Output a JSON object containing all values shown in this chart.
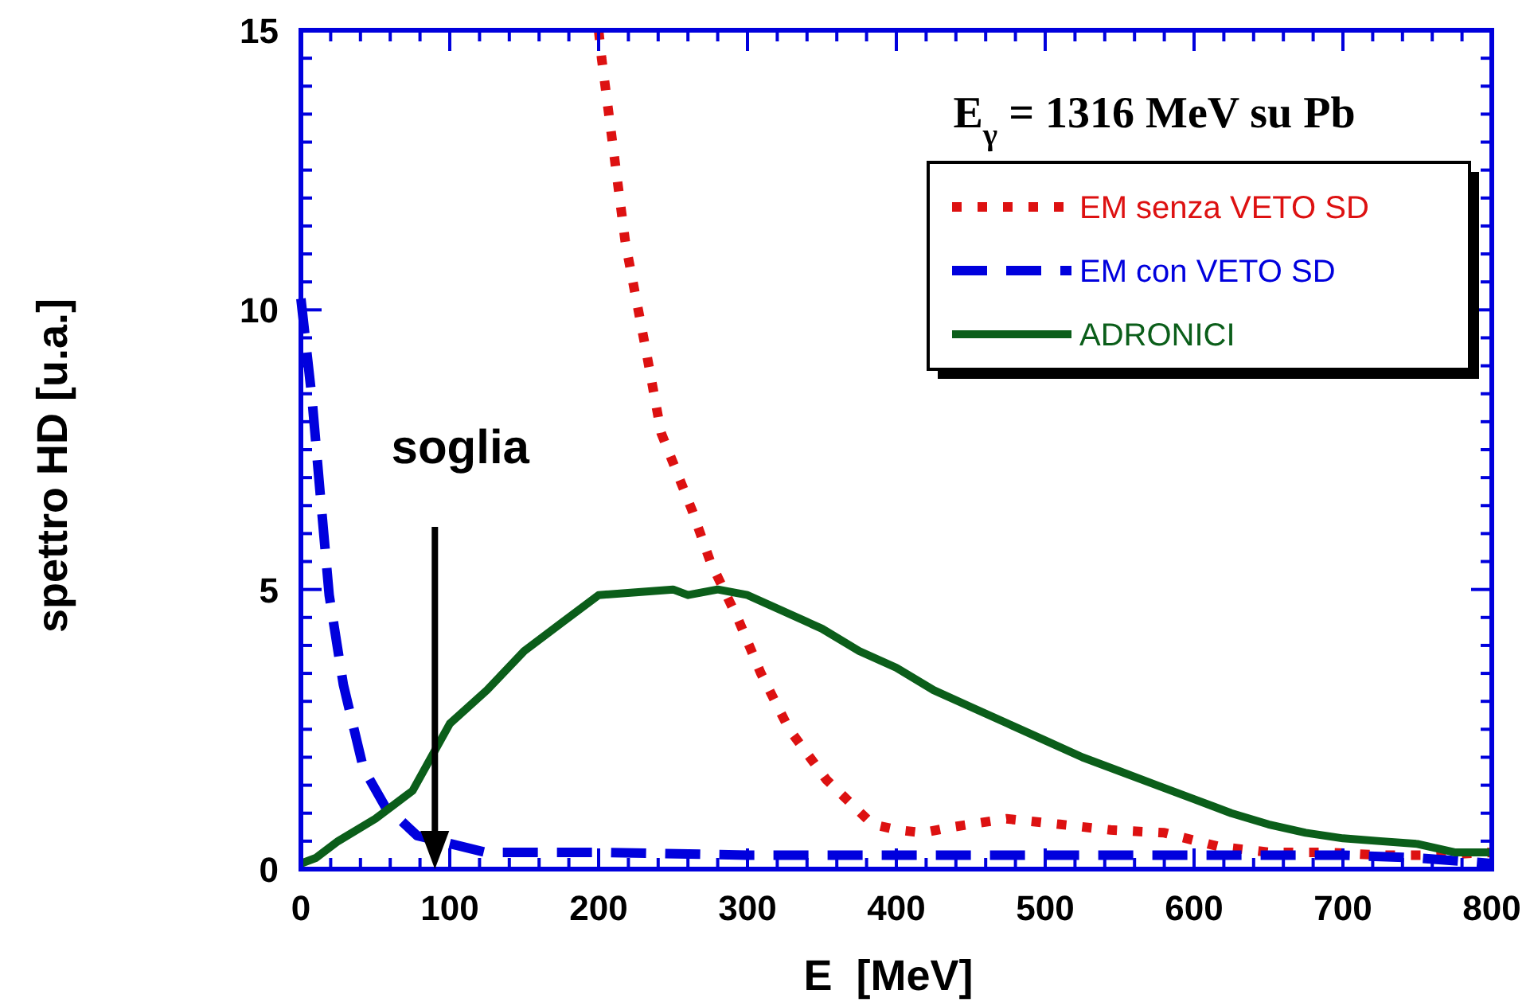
{
  "chart_data": {
    "type": "line",
    "title": "E$_{γ}$ = 1316 MeV su Pb",
    "xlabel": "E  [MeV]",
    "ylabel": "spettro HD [u.a.]",
    "xlim": [
      0,
      800
    ],
    "ylim": [
      0,
      15
    ],
    "xticks": [
      0,
      {
        "value": 20,
        "label": null
      },
      {
        "value": 40,
        "label": null
      },
      {
        "value": 60,
        "label": null
      },
      {
        "value": 80,
        "label": null
      },
      100,
      {
        "value": 120,
        "label": null
      },
      {
        "value": 140,
        "label": null
      },
      {
        "value": 160,
        "label": null
      },
      {
        "value": 180,
        "label": null
      },
      200,
      {
        "value": 220,
        "label": null
      },
      {
        "value": 240,
        "label": null
      },
      {
        "value": 260,
        "label": null
      },
      {
        "value": 280,
        "label": null
      },
      300,
      {
        "value": 320,
        "label": null
      },
      {
        "value": 340,
        "label": null
      },
      {
        "value": 360,
        "label": null
      },
      {
        "value": 380,
        "label": null
      },
      400,
      {
        "value": 420,
        "label": null
      },
      {
        "value": 440,
        "label": null
      },
      {
        "value": 460,
        "label": null
      },
      {
        "value": 480,
        "label": null
      },
      500,
      {
        "value": 520,
        "label": null
      },
      {
        "value": 540,
        "label": null
      },
      {
        "value": 560,
        "label": null
      },
      {
        "value": 580,
        "label": null
      },
      600,
      {
        "value": 620,
        "label": null
      },
      {
        "value": 640,
        "label": null
      },
      {
        "value": 660,
        "label": null
      },
      {
        "value": 680,
        "label": null
      },
      700,
      {
        "value": 720,
        "label": null
      },
      {
        "value": 740,
        "label": null
      },
      {
        "value": 760,
        "label": null
      },
      {
        "value": 780,
        "label": null
      },
      800
    ],
    "yticks": [
      0,
      {
        "value": 0.5,
        "label": null
      },
      {
        "value": 1,
        "label": null
      },
      {
        "value": 1.5,
        "label": null
      },
      {
        "value": 2,
        "label": null
      },
      {
        "value": 2.5,
        "label": null
      },
      {
        "value": 3,
        "label": null
      },
      {
        "value": 3.5,
        "label": null
      },
      {
        "value": 4,
        "label": null
      },
      {
        "value": 4.5,
        "label": null
      },
      5,
      {
        "value": 5.5,
        "label": null
      },
      {
        "value": 6,
        "label": null
      },
      {
        "value": 6.5,
        "label": null
      },
      {
        "value": 7,
        "label": null
      },
      {
        "value": 7.5,
        "label": null
      },
      {
        "value": 8,
        "label": null
      },
      {
        "value": 8.5,
        "label": null
      },
      {
        "value": 9,
        "label": null
      },
      {
        "value": 9.5,
        "label": null
      },
      10,
      {
        "value": 10.5,
        "label": null
      },
      {
        "value": 11,
        "label": null
      },
      {
        "value": 11.5,
        "label": null
      },
      {
        "value": 12,
        "label": null
      },
      {
        "value": 12.5,
        "label": null
      },
      {
        "value": 13,
        "label": null
      },
      {
        "value": 13.5,
        "label": null
      },
      {
        "value": 14,
        "label": null
      },
      {
        "value": 14.5,
        "label": null
      },
      15
    ],
    "grid": false,
    "legend": "top right",
    "marker": "none",
    "series": [
      {
        "name": "EM senza VETO SD",
        "color": "#dd1111",
        "line_style": "dotted",
        "x": [
          200,
          202,
          218,
          232,
          242,
          263,
          275,
          294,
          309,
          328,
          353,
          384,
          401,
          418,
          437,
          474,
          510,
          544,
          580,
          617,
          651,
          689,
          724,
          760,
          800
        ],
        "values": [
          15,
          14.5,
          11.2,
          9.25,
          7.8,
          6.4,
          5.5,
          4.45,
          3.5,
          2.5,
          1.6,
          0.8,
          0.7,
          0.65,
          0.75,
          0.9,
          0.8,
          0.7,
          0.65,
          0.4,
          0.3,
          0.3,
          0.25,
          0.25,
          0.3
        ]
      },
      {
        "name": "EM con VETO SD",
        "color": "#0000dd",
        "line_style": "dashed",
        "x": [
          0,
          7.5,
          13,
          19,
          28.5,
          42,
          57,
          66,
          78,
          124,
          200,
          300,
          400,
          500,
          600,
          700,
          750,
          800
        ],
        "values": [
          10.2,
          8.4,
          6.7,
          4.9,
          3.3,
          1.8,
          1.1,
          0.9,
          0.6,
          0.3,
          0.3,
          0.25,
          0.25,
          0.25,
          0.25,
          0.25,
          0.2,
          0.1
        ]
      },
      {
        "name": "ADRONICI",
        "color": "#0b5e1a",
        "line_style": "solid",
        "x": [
          0,
          10,
          25,
          50,
          75,
          100,
          125,
          150,
          175,
          200,
          225,
          250,
          260,
          280,
          300,
          325,
          350,
          375,
          400,
          425,
          450,
          475,
          500,
          525,
          550,
          575,
          600,
          625,
          650,
          675,
          700,
          725,
          750,
          775,
          800
        ],
        "values": [
          0.1,
          0.2,
          0.5,
          0.9,
          1.4,
          2.6,
          3.2,
          3.9,
          4.4,
          4.9,
          4.95,
          5.0,
          4.9,
          5.0,
          4.9,
          4.6,
          4.3,
          3.9,
          3.6,
          3.2,
          2.9,
          2.6,
          2.3,
          2.0,
          1.75,
          1.5,
          1.25,
          1.0,
          0.8,
          0.65,
          0.55,
          0.5,
          0.45,
          0.3,
          0.3
        ]
      }
    ],
    "ref_lines": [
      {
        "axis": "x",
        "value": 90,
        "label": "soglia",
        "color": "#000000"
      }
    ]
  }
}
